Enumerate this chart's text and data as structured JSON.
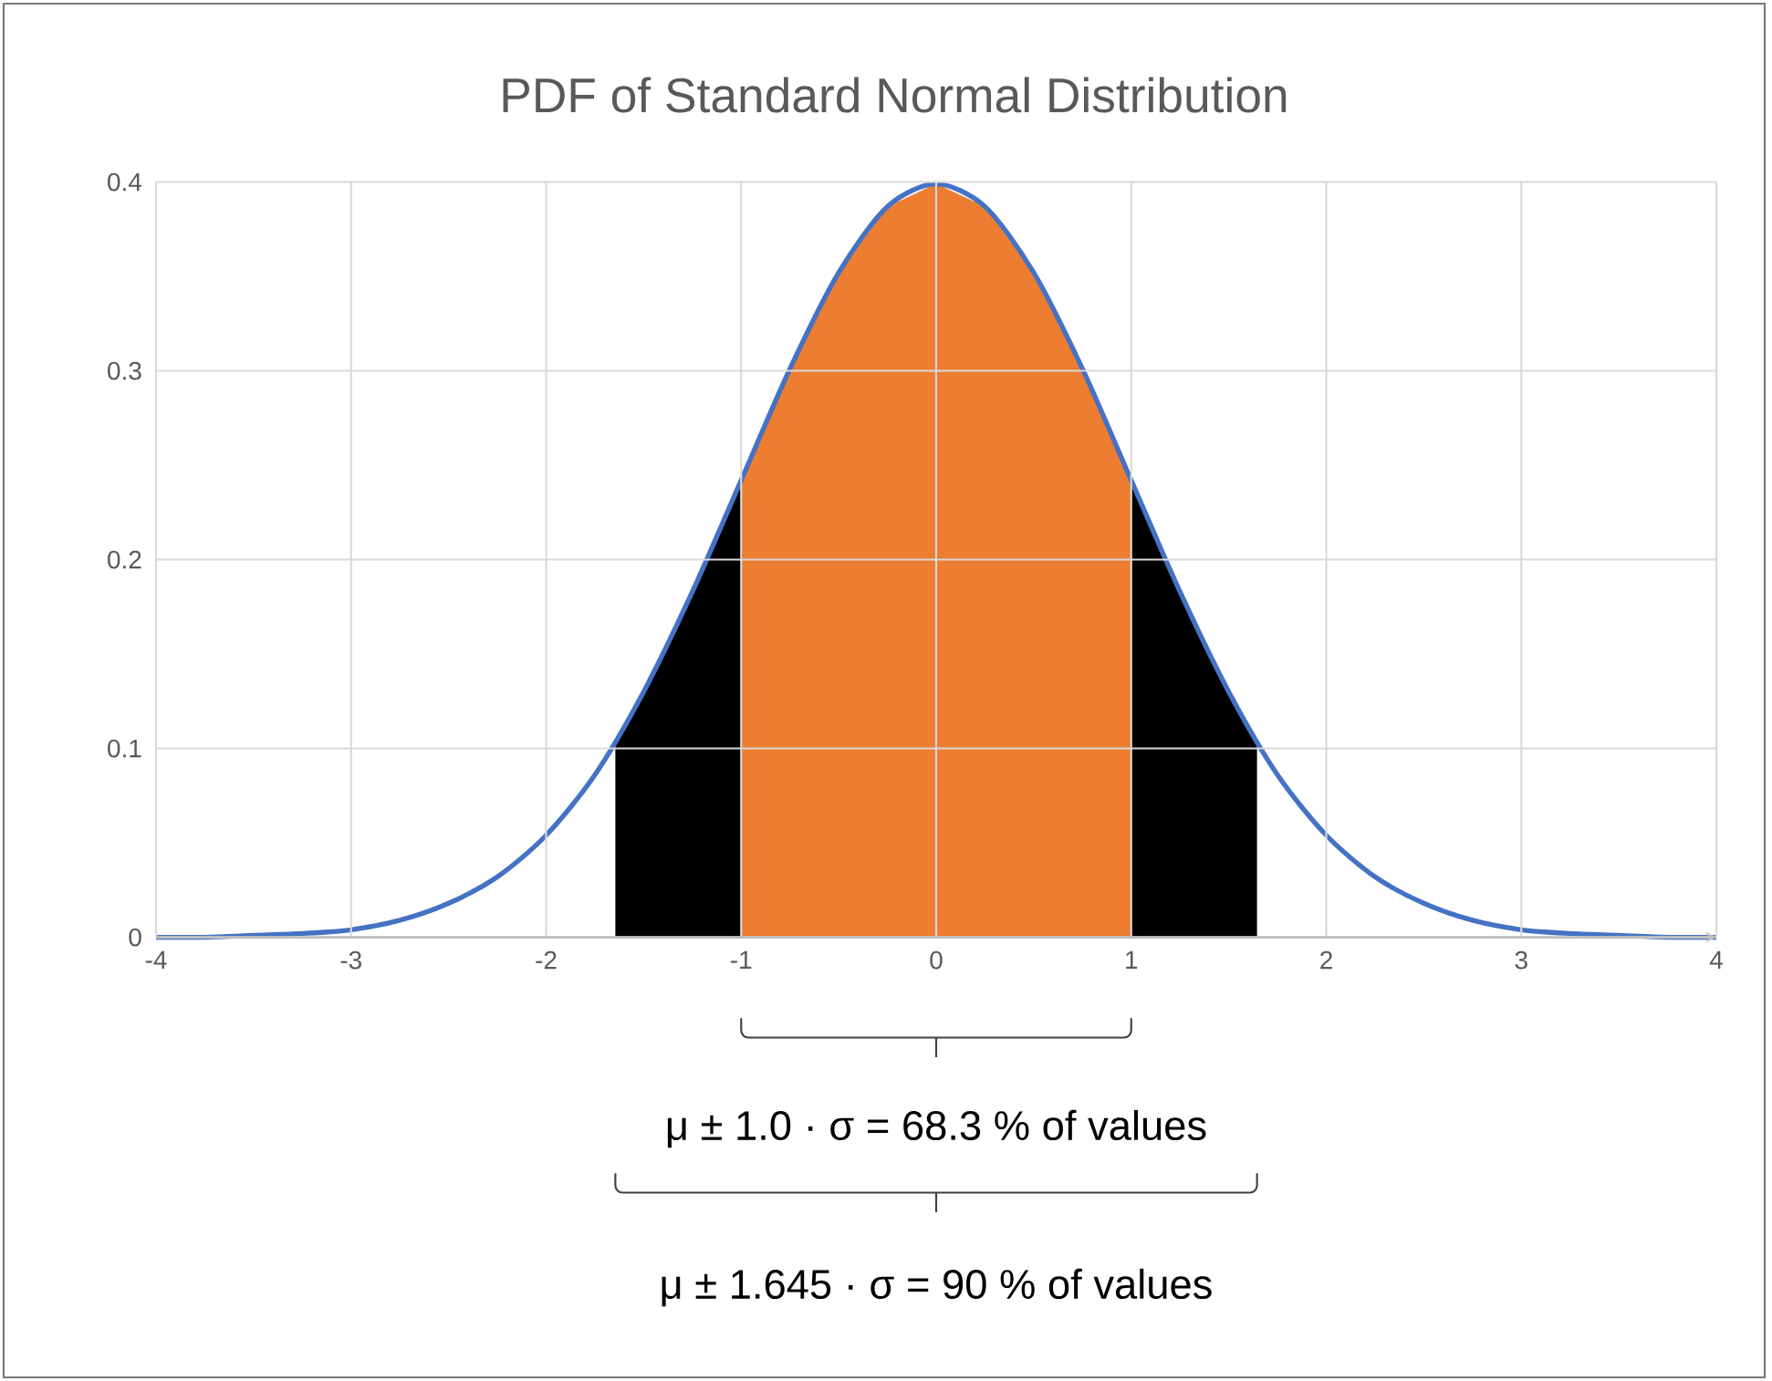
{
  "chart_data": {
    "type": "line",
    "title": "PDF of Standard Normal Distribution",
    "x": [
      -4,
      -3.75,
      -3.5,
      -3.25,
      -3,
      -2.75,
      -2.5,
      -2.25,
      -2,
      -1.75,
      -1.5,
      -1.25,
      -1,
      -0.75,
      -0.5,
      -0.25,
      0,
      0.25,
      0.5,
      0.75,
      1,
      1.25,
      1.5,
      1.75,
      2,
      2.25,
      2.5,
      2.75,
      3,
      3.25,
      3.5,
      3.75,
      4
    ],
    "series": [
      {
        "color": "#4472c4",
        "values": [
          0,
          0,
          0.001,
          0.002,
          0.004,
          0.009,
          0.018,
          0.032,
          0.054,
          0.086,
          0.13,
          0.183,
          0.242,
          0.301,
          0.352,
          0.387,
          0.399,
          0.387,
          0.352,
          0.301,
          0.242,
          0.183,
          0.13,
          0.086,
          0.054,
          0.032,
          0.018,
          0.009,
          0.004,
          0.002,
          0.001,
          0,
          0
        ]
      },
      {
        "type": "area",
        "color": "#ed7d31",
        "x": [
          -1,
          -0.75,
          -0.5,
          -0.25,
          0,
          0.25,
          0.5,
          0.75,
          1
        ],
        "values": [
          0.242,
          0.301,
          0.352,
          0.387,
          0.399,
          0.387,
          0.352,
          0.301,
          0.242
        ]
      },
      {
        "type": "area",
        "color": "#000000",
        "x": [
          -1.645,
          -1.5,
          -1.25,
          -1
        ],
        "values": [
          0.103,
          0.13,
          0.183,
          0.242
        ]
      },
      {
        "type": "area",
        "color": "#000000",
        "x": [
          1,
          1.25,
          1.5,
          1.645
        ],
        "values": [
          0.242,
          0.183,
          0.13,
          0.103
        ]
      }
    ],
    "xlim": [
      -4,
      4
    ],
    "ylim": [
      0,
      0.4
    ],
    "xticks": [
      -4,
      -3,
      -2,
      -1,
      0,
      1,
      2,
      3,
      4
    ],
    "yticks": [
      0,
      0.1,
      0.2,
      0.3,
      0.4
    ],
    "grid": true,
    "marker": "none",
    "line_style": "solid",
    "annotations": [
      "μ ± 1.0 · σ = 68.3 % of values",
      "μ ± 1.645 · σ = 90 % of values"
    ]
  }
}
